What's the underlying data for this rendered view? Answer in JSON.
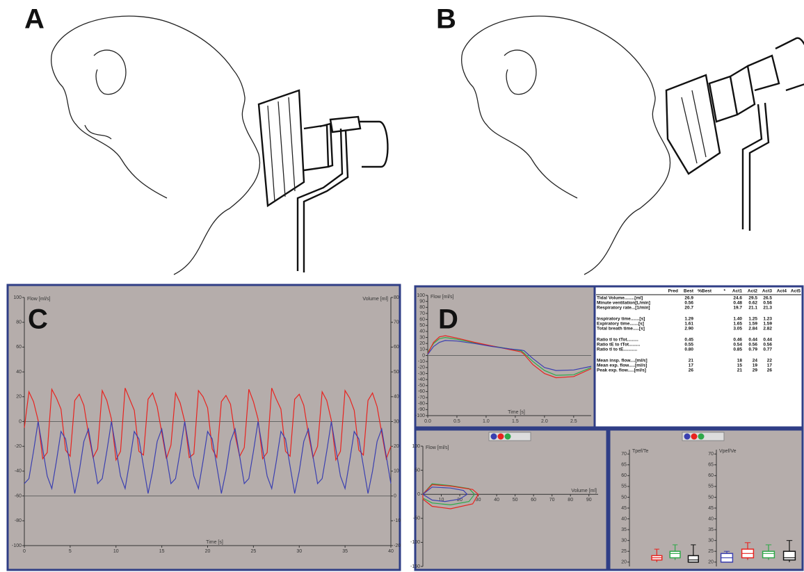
{
  "panel_labels": [
    "A",
    "B",
    "C",
    "D"
  ],
  "chart_data": [
    {
      "type": "line",
      "ylabel": "Flow [ml/s]",
      "y2label": "Volume [ml]",
      "xlabel": "Time [s]",
      "x": [
        0,
        0.5,
        1,
        1.5,
        2,
        2.5,
        3,
        3.5,
        4,
        4.5,
        5,
        5.5,
        6,
        6.5,
        7,
        7.5,
        8,
        8.5,
        9,
        9.5,
        10,
        10.5,
        11,
        11.5,
        12,
        12.5,
        13,
        13.5,
        14,
        14.5,
        15,
        15.5,
        16,
        16.5,
        17,
        17.5,
        18,
        18.5,
        19,
        19.5,
        20,
        20.5,
        21,
        21.5,
        22,
        22.5,
        23,
        23.5,
        24,
        24.5,
        25,
        25.5,
        26,
        26.5,
        27,
        27.5,
        28,
        28.5,
        29,
        29.5,
        30,
        30.5,
        31,
        31.5,
        32,
        32.5,
        33,
        33.5,
        34,
        34.5,
        35,
        35.5,
        36,
        36.5,
        37,
        37.5,
        38,
        38.5,
        39,
        39.5,
        40
      ],
      "series": [
        {
          "color": "#e8231f",
          "values": [
            -5,
            24,
            16,
            1,
            -30,
            -25,
            26,
            19,
            10,
            -23,
            -28,
            17,
            22,
            13,
            -10,
            -29,
            -22,
            25,
            17,
            2,
            -31,
            -24,
            27,
            18,
            9,
            -24,
            -27,
            18,
            23,
            12,
            -9,
            -30,
            -19,
            23,
            15,
            0,
            -29,
            -26,
            25,
            20,
            11,
            -22,
            -29,
            16,
            21,
            14,
            -11,
            -28,
            -21,
            26,
            16,
            2,
            -30,
            -25,
            27,
            18,
            10,
            -24,
            -28,
            18,
            22,
            13,
            -10,
            -29,
            -20,
            24,
            17,
            1,
            -31,
            -24,
            25,
            19,
            9,
            -23,
            -27,
            17,
            23,
            12,
            -9,
            -30,
            -20
          ]
        },
        {
          "color": "#3a3fb0",
          "axis": "y2",
          "values": [
            5,
            7,
            18,
            30,
            19,
            8,
            3,
            14,
            26,
            23,
            12,
            1,
            10,
            22,
            27,
            16,
            5,
            7,
            18,
            30,
            19,
            8,
            3,
            14,
            26,
            23,
            12,
            1,
            10,
            22,
            27,
            16,
            5,
            7,
            18,
            30,
            19,
            8,
            3,
            14,
            26,
            23,
            12,
            1,
            10,
            22,
            27,
            16,
            5,
            7,
            18,
            30,
            19,
            8,
            3,
            14,
            26,
            23,
            12,
            1,
            10,
            22,
            27,
            16,
            5,
            7,
            18,
            30,
            19,
            8,
            3,
            14,
            26,
            23,
            12,
            1,
            10,
            22,
            27,
            16,
            5
          ]
        }
      ],
      "xlim": [
        0,
        40
      ],
      "xticks": [
        0,
        5,
        10,
        15,
        20,
        25,
        30,
        35,
        40
      ],
      "ylim": [
        -100,
        100
      ],
      "yticks": [
        -100,
        -80,
        -60,
        -40,
        -20,
        0,
        20,
        40,
        60,
        80,
        100
      ],
      "y2lim": [
        -20,
        80
      ],
      "y2ticks": [
        -20,
        -10,
        0,
        10,
        20,
        30,
        40,
        50,
        60,
        70,
        80
      ],
      "hlines": [
        0,
        -60
      ]
    },
    {
      "type": "line",
      "ylabel": "Flow [ml/s]",
      "xlabel": "Time [s]",
      "x": [
        0,
        0.1,
        0.2,
        0.3,
        0.5,
        0.8,
        1.1,
        1.4,
        1.6,
        1.65,
        1.8,
        2.0,
        2.2,
        2.5,
        2.8
      ],
      "series": [
        {
          "color": "#2fa84a",
          "values": [
            5,
            20,
            28,
            30,
            27,
            21,
            16,
            11,
            8,
            4,
            -10,
            -25,
            -33,
            -32,
            -20
          ]
        },
        {
          "color": "#e8231f",
          "values": [
            3,
            22,
            31,
            33,
            29,
            22,
            16,
            10,
            6,
            2,
            -15,
            -30,
            -37,
            -35,
            -22
          ]
        },
        {
          "color": "#3a3fb0",
          "values": [
            2,
            15,
            22,
            25,
            24,
            20,
            15,
            11,
            9,
            8,
            -5,
            -20,
            -25,
            -24,
            -18
          ]
        }
      ],
      "xlim": [
        0,
        2.8
      ],
      "xticks": [
        {
          "value": 0,
          "label": "0.0"
        },
        0.5,
        {
          "value": 1,
          "label": "1.0"
        },
        1.5,
        {
          "value": 2,
          "label": "2.0"
        },
        2.5
      ],
      "ylim": [
        -100,
        100
      ],
      "yticks": [
        -100,
        -90,
        -80,
        -70,
        -60,
        -50,
        -40,
        -30,
        -20,
        -10,
        0,
        10,
        20,
        30,
        40,
        50,
        60,
        70,
        80,
        90,
        100
      ],
      "hlines": [
        0
      ]
    },
    {
      "type": "line",
      "ylabel": "Flow [ml/s]",
      "xlabel": "Volume [ml]",
      "series": [
        {
          "color": "#2fa84a",
          "x": [
            0,
            5,
            15,
            25,
            28,
            25,
            15,
            5,
            0,
            0
          ],
          "values": [
            0,
            22,
            18,
            12,
            0,
            -15,
            -22,
            -18,
            -8,
            0
          ]
        },
        {
          "color": "#e8231f",
          "x": [
            0,
            5,
            15,
            27,
            30,
            27,
            15,
            5,
            0,
            0
          ],
          "values": [
            0,
            20,
            17,
            10,
            0,
            -20,
            -30,
            -25,
            -10,
            0
          ]
        },
        {
          "color": "#3a3fb0",
          "x": [
            0,
            5,
            15,
            22,
            24,
            20,
            12,
            5,
            0
          ],
          "values": [
            0,
            15,
            13,
            8,
            0,
            -10,
            -15,
            -12,
            0
          ]
        }
      ],
      "xlim": [
        0,
        95
      ],
      "xticks": [
        10,
        20,
        30,
        40,
        50,
        60,
        70,
        80,
        90
      ],
      "ylim": [
        -150,
        100
      ],
      "yticks": [
        -150,
        -100,
        -50,
        0,
        50,
        100
      ]
    },
    {
      "type": "box",
      "ylabel": "Tpef/Te",
      "series": [
        {
          "color": "#e8231f",
          "values": [
            20,
            21,
            22,
            23,
            26
          ]
        },
        {
          "color": "#2fa84a",
          "values": [
            21,
            22,
            24,
            25,
            28
          ]
        },
        {
          "color": "#111111",
          "values": [
            20,
            20,
            21,
            23,
            28
          ]
        }
      ],
      "ylim": [
        18,
        72
      ],
      "yticks": [
        20,
        25,
        30,
        35,
        40,
        45,
        50,
        55,
        60,
        65,
        70
      ]
    },
    {
      "type": "box",
      "ylabel": "Vpef/Ve",
      "series": [
        {
          "color": "#3a3fb0",
          "values": [
            20,
            20,
            22,
            24,
            25
          ]
        },
        {
          "color": "#e8231f",
          "values": [
            21,
            22,
            24,
            26,
            29
          ]
        },
        {
          "color": "#2fa84a",
          "values": [
            21,
            22,
            24,
            25,
            28
          ]
        },
        {
          "color": "#111111",
          "values": [
            20,
            21,
            22,
            25,
            30
          ]
        }
      ],
      "ylim": [
        18,
        72
      ],
      "yticks": [
        20,
        25,
        30,
        35,
        40,
        45,
        50,
        55,
        60,
        65,
        70
      ]
    }
  ],
  "table": {
    "columns": [
      "Pred",
      "Best",
      "%Best",
      "*",
      "Act1",
      "Act2",
      "Act3",
      "Act4",
      "Act5"
    ],
    "groups": [
      [
        {
          "label": "Tidal Volume........[ml]",
          "best": "26.9",
          "acts": [
            "24.6",
            "29.5",
            "26.5"
          ]
        },
        {
          "label": "Minute ventilation[L/min]",
          "best": "0.56",
          "acts": [
            "0.48",
            "0.62",
            "0.56"
          ]
        },
        {
          "label": "Respiratory rate...[1/min]",
          "best": "20.7",
          "acts": [
            "19.7",
            "21.1",
            "21.3"
          ]
        }
      ],
      [
        {
          "label": "Inspiratory time.......[s]",
          "best": "1.29",
          "acts": [
            "1.40",
            "1.25",
            "1.23"
          ]
        },
        {
          "label": "Expiratory time.......[s]",
          "best": "1.61",
          "acts": [
            "1.65",
            "1.59",
            "1.59"
          ]
        },
        {
          "label": "Total breath time.....[s]",
          "best": "2.90",
          "acts": [
            "3.05",
            "2.84",
            "2.82"
          ]
        }
      ],
      [
        {
          "label": "Ratio tI to tTot.........",
          "best": "0.45",
          "acts": [
            "0.46",
            "0.44",
            "0.44"
          ]
        },
        {
          "label": "Ratio tE to tTot.........",
          "best": "0.55",
          "acts": [
            "0.54",
            "0.56",
            "0.56"
          ]
        },
        {
          "label": "Ratio tI to tE...........",
          "best": "0.80",
          "acts": [
            "0.85",
            "0.79",
            "0.77"
          ]
        }
      ],
      [
        {
          "label": "Mean insp. flow....[ml/s]",
          "best": "21",
          "acts": [
            "18",
            "24",
            "22"
          ]
        },
        {
          "label": "Mean exp. flow.....[ml/s]",
          "best": "17",
          "acts": [
            "15",
            "19",
            "17"
          ]
        },
        {
          "label": "Peak exp. flow.....[ml/s]",
          "best": "26",
          "acts": [
            "21",
            "29",
            "26"
          ]
        }
      ]
    ]
  }
}
